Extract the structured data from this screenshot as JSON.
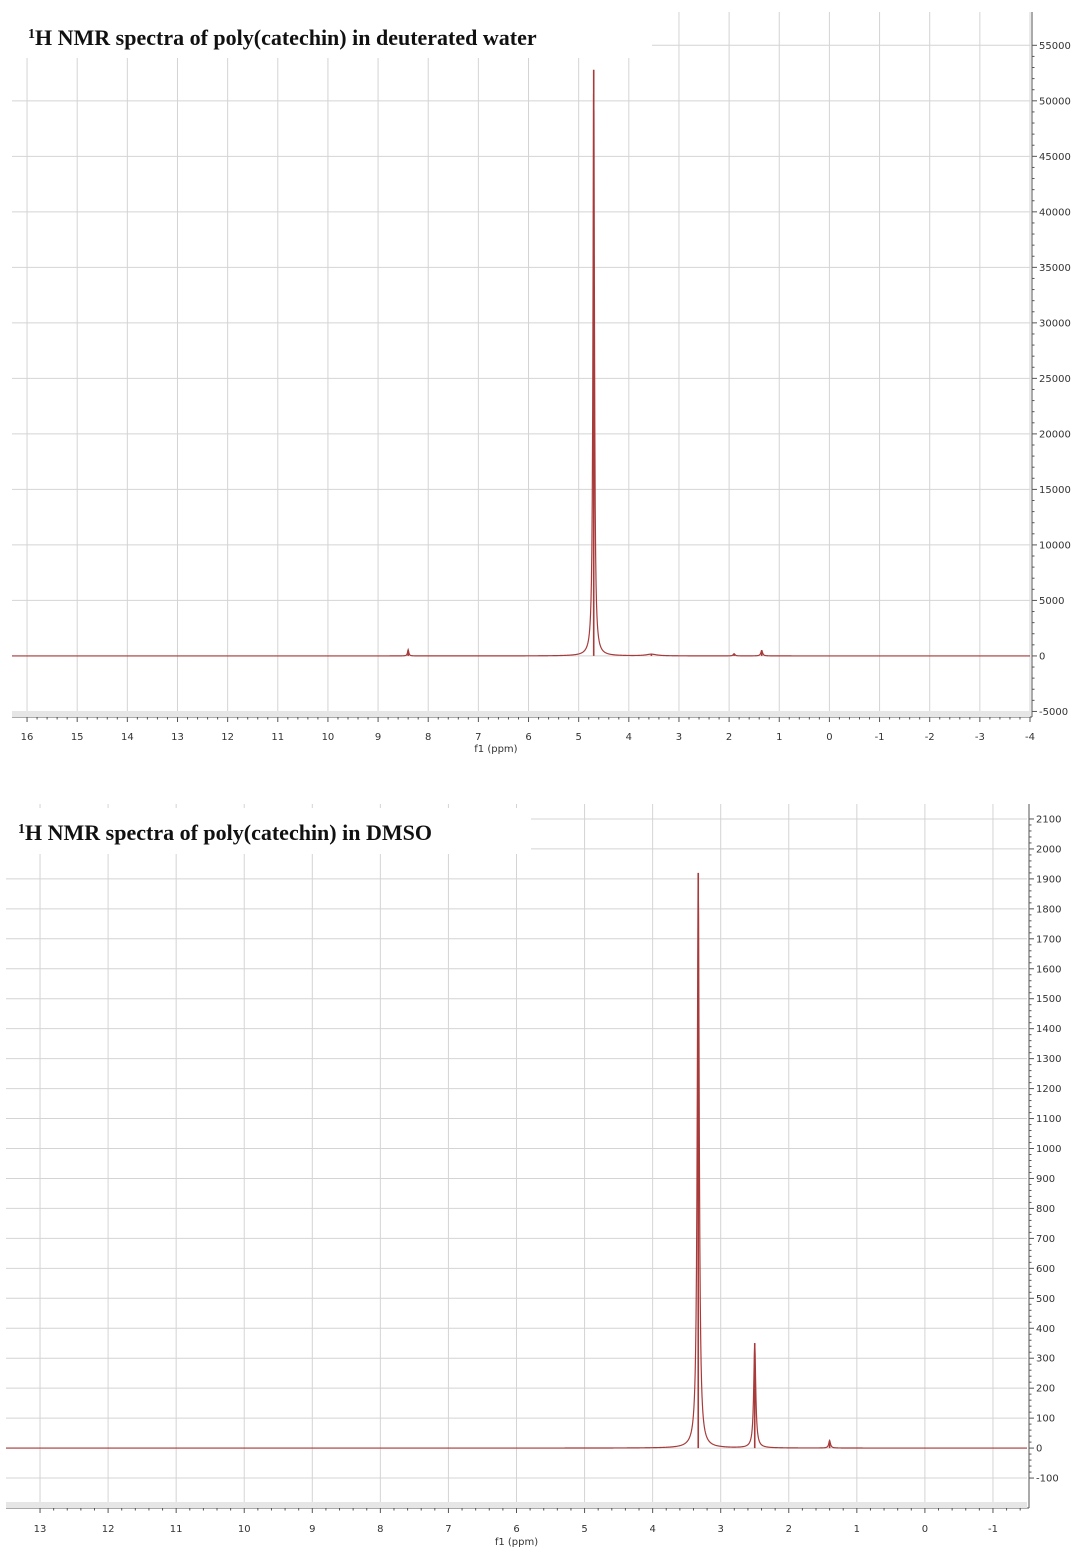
{
  "chart_data": [
    {
      "type": "line",
      "title": "NMR spectra of poly(catechin) in deuterated water",
      "title_superscript": "1",
      "title_prefix": "H",
      "xlabel": "f1 (ppm)",
      "ylabel": "",
      "xlim": [
        16.3,
        -4
      ],
      "ylim": [
        -5500,
        58000
      ],
      "x_ticks": [
        16,
        15,
        14,
        13,
        12,
        11,
        10,
        9,
        8,
        7,
        6,
        5,
        4,
        3,
        2,
        1,
        0,
        -1,
        -2,
        -3,
        -4
      ],
      "x_tick_labels": [
        "16",
        "15",
        "14",
        "13",
        "12",
        "11",
        "10",
        "9",
        "8",
        "7",
        "6",
        "5",
        "4",
        "3",
        "2",
        "1",
        "0",
        "-1",
        "-2",
        "-3",
        "-4"
      ],
      "y_ticks": [
        -5000,
        0,
        5000,
        10000,
        15000,
        20000,
        25000,
        30000,
        35000,
        40000,
        45000,
        50000,
        55000
      ],
      "y_tick_labels": [
        "-5000",
        "0",
        "5000",
        "10000",
        "15000",
        "20000",
        "25000",
        "30000",
        "35000",
        "40000",
        "45000",
        "50000",
        "55000"
      ],
      "grid": true,
      "x_axis_reversed": true,
      "y_axis_side": "right",
      "line_color": "#a83a3a",
      "peaks": [
        {
          "x": 4.7,
          "y": 52800,
          "width": 0.035
        },
        {
          "x": 8.4,
          "y": 550,
          "width": 0.03
        },
        {
          "x": 3.55,
          "y": 150,
          "width": 0.25
        },
        {
          "x": 1.9,
          "y": 200,
          "width": 0.04
        },
        {
          "x": 1.35,
          "y": 500,
          "width": 0.04
        }
      ]
    },
    {
      "type": "line",
      "title": "NMR spectra of poly(catechin) in DMSO",
      "title_superscript": "1",
      "title_prefix": "H",
      "xlabel": "f1 (ppm)",
      "ylabel": "",
      "xlim": [
        13.5,
        -1.5
      ],
      "ylim": [
        -200,
        2150
      ],
      "x_ticks": [
        13,
        12,
        11,
        10,
        9,
        8,
        7,
        6,
        5,
        4,
        3,
        2,
        1,
        0,
        -1
      ],
      "x_tick_labels": [
        "13",
        "12",
        "11",
        "10",
        "9",
        "8",
        "7",
        "6",
        "5",
        "4",
        "3",
        "2",
        "1",
        "0",
        "-1"
      ],
      "y_ticks": [
        -100,
        0,
        100,
        200,
        300,
        400,
        500,
        600,
        700,
        800,
        900,
        1000,
        1100,
        1200,
        1300,
        1400,
        1500,
        1600,
        1700,
        1800,
        1900,
        2000,
        2100
      ],
      "y_tick_labels": [
        "-100",
        "0",
        "100",
        "200",
        "300",
        "400",
        "500",
        "600",
        "700",
        "800",
        "900",
        "1000",
        "1100",
        "1200",
        "1300",
        "1400",
        "1500",
        "1600",
        "1700",
        "1800",
        "1900",
        "2000",
        "2100"
      ],
      "grid": true,
      "x_axis_reversed": true,
      "y_axis_side": "right",
      "line_color": "#a83a3a",
      "peaks": [
        {
          "x": 3.33,
          "y": 1920,
          "width": 0.035
        },
        {
          "x": 2.5,
          "y": 350,
          "width": 0.035
        },
        {
          "x": 1.4,
          "y": 25,
          "width": 0.03
        }
      ]
    }
  ]
}
